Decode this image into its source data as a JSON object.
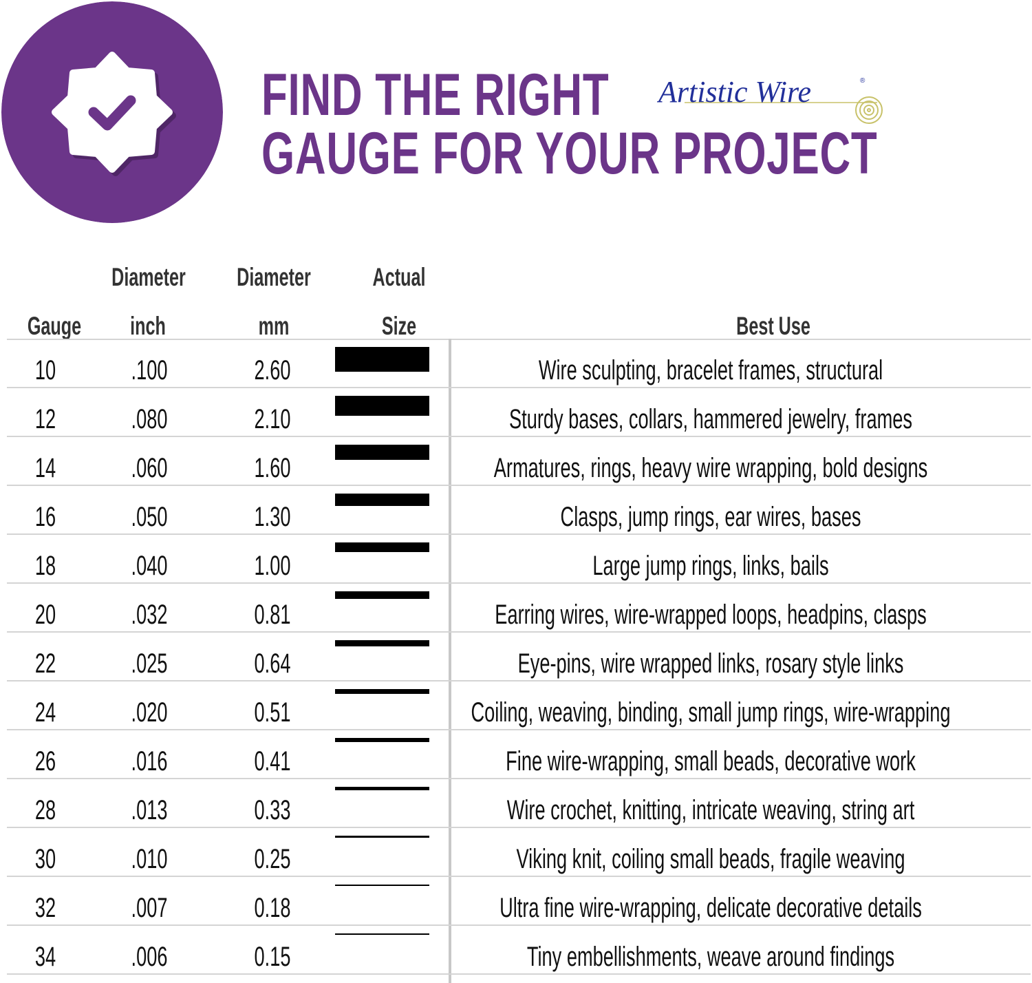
{
  "header": {
    "title_line1": "FIND THE RIGHT",
    "title_line2": "GAUGE FOR YOUR PROJECT",
    "brand_logo_text": "Artistic Wire",
    "badge_icon": "check-badge-icon",
    "title_color": "#6b3589",
    "badge_color": "#6b3589",
    "logo_color": "#22309a",
    "logo_accent": "#c8c26a"
  },
  "table": {
    "headers": {
      "gauge": "Gauge",
      "inch_top": "Diameter",
      "inch_bottom": "inch",
      "mm_top": "Diameter",
      "mm_bottom": "mm",
      "size_top": "Actual",
      "size_bottom": "Size",
      "use": "Best Use"
    },
    "rows": [
      {
        "gauge": "10",
        "inch": ".100",
        "mm": "2.60",
        "use": "Wire sculpting, bracelet frames, structural"
      },
      {
        "gauge": "12",
        "inch": ".080",
        "mm": "2.10",
        "use": "Sturdy bases, collars, hammered jewelry, frames"
      },
      {
        "gauge": "14",
        "inch": ".060",
        "mm": "1.60",
        "use": "Armatures, rings, heavy wire wrapping, bold designs"
      },
      {
        "gauge": "16",
        "inch": ".050",
        "mm": "1.30",
        "use": "Clasps, jump rings, ear wires, bases"
      },
      {
        "gauge": "18",
        "inch": ".040",
        "mm": "1.00",
        "use": "Large jump rings, links, bails"
      },
      {
        "gauge": "20",
        "inch": ".032",
        "mm": "0.81",
        "use": "Earring wires, wire-wrapped loops, headpins, clasps"
      },
      {
        "gauge": "22",
        "inch": ".025",
        "mm": "0.64",
        "use": "Eye-pins, wire wrapped links, rosary style links"
      },
      {
        "gauge": "24",
        "inch": ".020",
        "mm": "0.51",
        "use": "Coiling, weaving, binding, small jump rings, wire-wrapping"
      },
      {
        "gauge": "26",
        "inch": ".016",
        "mm": "0.41",
        "use": "Fine wire-wrapping, small beads, decorative work"
      },
      {
        "gauge": "28",
        "inch": ".013",
        "mm": "0.33",
        "use": "Wire crochet, knitting, intricate weaving, string art"
      },
      {
        "gauge": "30",
        "inch": ".010",
        "mm": "0.25",
        "use": "Viking knit, coiling small beads, fragile weaving"
      },
      {
        "gauge": "32",
        "inch": ".007",
        "mm": "0.18",
        "use": "Ultra fine wire-wrapping, delicate decorative details"
      },
      {
        "gauge": "34",
        "inch": ".006",
        "mm": "0.15",
        "use": "Tiny embellishments, weave around findings"
      }
    ]
  }
}
